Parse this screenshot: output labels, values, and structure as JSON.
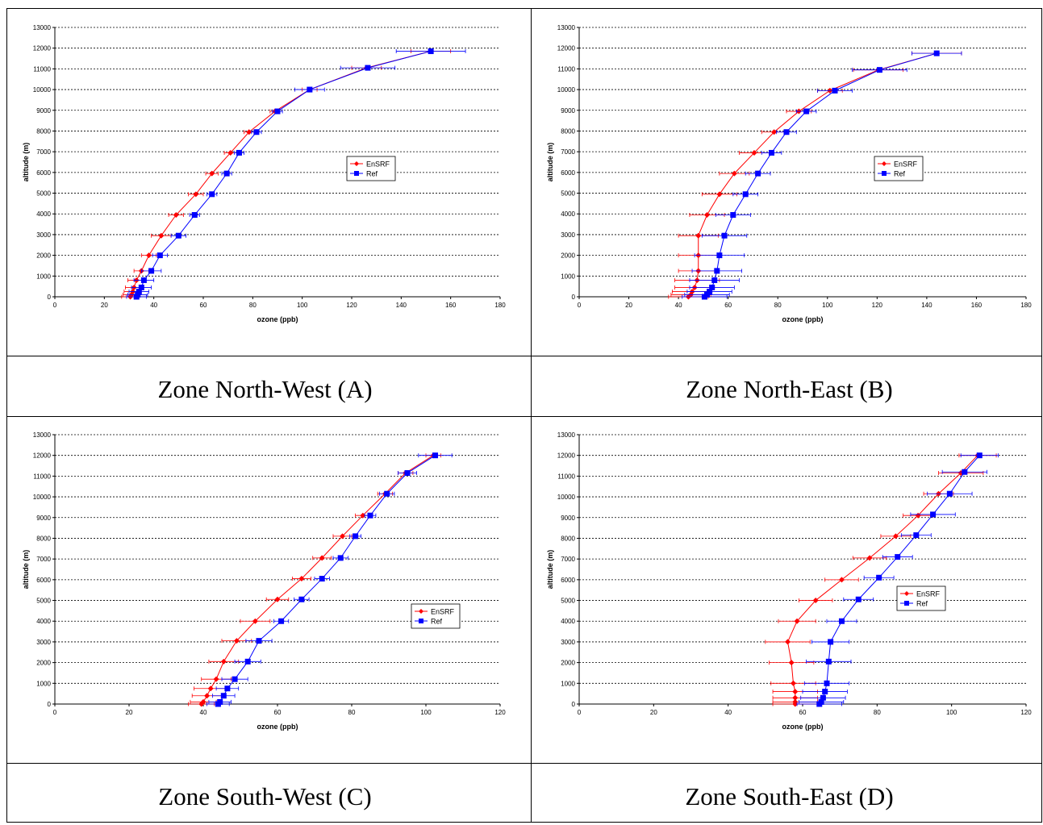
{
  "captions": [
    "Zone North-West (A)",
    "Zone North-East (B)",
    "Zone South-West (C)",
    "Zone South-East (D)"
  ],
  "chart_data": [
    {
      "type": "line",
      "xlabel": "ozone (ppb)",
      "ylabel": "altitude (m)",
      "xlim": [
        0,
        180
      ],
      "ylim": [
        0,
        13000
      ],
      "xticks": [
        0,
        20,
        40,
        60,
        80,
        100,
        120,
        140,
        160,
        180
      ],
      "yticks": [
        0,
        1000,
        2000,
        3000,
        4000,
        5000,
        6000,
        7000,
        8000,
        9000,
        10000,
        11000,
        12000,
        13000
      ],
      "grid": "horizontal dashed",
      "legend": "right",
      "colors": {
        "EnSRF": "#ff0000",
        "Ref": "#0000ff"
      },
      "series": [
        {
          "name": "EnSRF",
          "marker": "diamond",
          "points": [
            [
              30.5,
              0
            ],
            [
              31,
              100
            ],
            [
              31.5,
              250
            ],
            [
              32,
              450
            ],
            [
              33,
              800
            ],
            [
              35,
              1250
            ],
            [
              38,
              2000
            ],
            [
              43,
              2950
            ],
            [
              49,
              3950
            ],
            [
              57,
              4950
            ],
            [
              63.5,
              5950
            ],
            [
              71,
              6950
            ],
            [
              78.5,
              7950
            ],
            [
              89,
              8950
            ],
            [
              103,
              10000
            ],
            [
              126,
              11050
            ],
            [
              152,
              11850
            ]
          ],
          "errors": [
            3.5,
            3.5,
            3.5,
            3.5,
            3.5,
            3,
            3,
            4,
            3,
            3,
            2.5,
            2.5,
            2,
            2,
            3,
            6,
            8
          ]
        },
        {
          "name": "Ref",
          "marker": "square",
          "points": [
            [
              33,
              0
            ],
            [
              33.5,
              100
            ],
            [
              34,
              250
            ],
            [
              35,
              450
            ],
            [
              36,
              800
            ],
            [
              39,
              1250
            ],
            [
              42.5,
              2000
            ],
            [
              50,
              2950
            ],
            [
              56.5,
              3950
            ],
            [
              63.5,
              4950
            ],
            [
              69.5,
              5950
            ],
            [
              74.5,
              6950
            ],
            [
              81.5,
              7950
            ],
            [
              90,
              8950
            ],
            [
              103,
              10000
            ],
            [
              126.5,
              11050
            ],
            [
              152,
              11850
            ]
          ],
          "errors": [
            4,
            4,
            4,
            4,
            4,
            4,
            3,
            3,
            2,
            2,
            2,
            2,
            2,
            2,
            6,
            11,
            14
          ]
        }
      ]
    },
    {
      "type": "line",
      "xlabel": "ozone (ppb)",
      "ylabel": "altitude (m)",
      "xlim": [
        0,
        180
      ],
      "ylim": [
        0,
        13000
      ],
      "xticks": [
        0,
        20,
        40,
        60,
        80,
        100,
        120,
        140,
        160,
        180
      ],
      "yticks": [
        0,
        1000,
        2000,
        3000,
        4000,
        5000,
        6000,
        7000,
        8000,
        9000,
        10000,
        11000,
        12000,
        13000
      ],
      "grid": "horizontal dashed",
      "legend": "right",
      "colors": {
        "EnSRF": "#ff0000",
        "Ref": "#0000ff"
      },
      "series": [
        {
          "name": "EnSRF",
          "marker": "diamond",
          "points": [
            [
              44,
              0
            ],
            [
              45,
              100
            ],
            [
              45.5,
              250
            ],
            [
              46.5,
              450
            ],
            [
              47.5,
              800
            ],
            [
              48,
              1250
            ],
            [
              48,
              2000
            ],
            [
              48,
              2950
            ],
            [
              51.5,
              3950
            ],
            [
              56.5,
              4950
            ],
            [
              62.5,
              5950
            ],
            [
              70.5,
              6950
            ],
            [
              78.5,
              7950
            ],
            [
              88.5,
              8950
            ],
            [
              101,
              9950
            ],
            [
              120.5,
              10950
            ],
            [
              144,
              11750
            ]
          ],
          "errors": [
            8,
            8,
            8,
            8,
            9,
            8,
            8,
            8,
            7,
            7,
            6,
            6,
            5,
            5,
            5,
            10,
            10
          ]
        },
        {
          "name": "Ref",
          "marker": "square",
          "points": [
            [
              50.5,
              0
            ],
            [
              51.5,
              100
            ],
            [
              52.5,
              250
            ],
            [
              53.5,
              450
            ],
            [
              54.5,
              800
            ],
            [
              55.5,
              1250
            ],
            [
              56.5,
              2000
            ],
            [
              58.5,
              2950
            ],
            [
              62,
              3950
            ],
            [
              67,
              4950
            ],
            [
              72,
              5950
            ],
            [
              77.5,
              6950
            ],
            [
              83.5,
              7950
            ],
            [
              91.5,
              8950
            ],
            [
              103,
              9950
            ],
            [
              121,
              10950
            ],
            [
              144,
              11750
            ]
          ],
          "errors": [
            9,
            9,
            9,
            9,
            10,
            10,
            10,
            9,
            7,
            5,
            5,
            4,
            4,
            4,
            7,
            11,
            10
          ]
        }
      ]
    },
    {
      "type": "line",
      "xlabel": "ozone (ppb)",
      "ylabel": "altitude (m)",
      "xlim": [
        0,
        120
      ],
      "ylim": [
        0,
        13000
      ],
      "xticks": [
        0,
        20,
        40,
        60,
        80,
        100,
        120
      ],
      "yticks": [
        0,
        1000,
        2000,
        3000,
        4000,
        5000,
        6000,
        7000,
        8000,
        9000,
        10000,
        11000,
        12000,
        13000
      ],
      "grid": "horizontal dashed",
      "legend": "right",
      "colors": {
        "EnSRF": "#ff0000",
        "Ref": "#0000ff"
      },
      "series": [
        {
          "name": "EnSRF",
          "marker": "diamond",
          "points": [
            [
              39.5,
              0
            ],
            [
              40,
              100
            ],
            [
              41,
              400
            ],
            [
              42,
              750
            ],
            [
              43.5,
              1200
            ],
            [
              45.5,
              2050
            ],
            [
              49,
              3050
            ],
            [
              54,
              4000
            ],
            [
              60,
              5050
            ],
            [
              66.5,
              6050
            ],
            [
              72,
              7050
            ],
            [
              77.5,
              8100
            ],
            [
              83,
              9100
            ],
            [
              89,
              10150
            ],
            [
              94.5,
              11150
            ],
            [
              102,
              12000
            ]
          ],
          "errors": [
            3.5,
            3.5,
            4,
            4.5,
            4,
            4,
            4,
            4,
            3,
            2.5,
            2.5,
            2.5,
            2,
            2,
            2,
            2
          ]
        },
        {
          "name": "Ref",
          "marker": "square",
          "points": [
            [
              44,
              0
            ],
            [
              44.5,
              100
            ],
            [
              45.5,
              400
            ],
            [
              46.5,
              750
            ],
            [
              48.5,
              1200
            ],
            [
              52,
              2050
            ],
            [
              55,
              3050
            ],
            [
              61,
              4000
            ],
            [
              66.5,
              5050
            ],
            [
              72,
              6050
            ],
            [
              77,
              7050
            ],
            [
              81,
              8100
            ],
            [
              85,
              9100
            ],
            [
              89.5,
              10150
            ],
            [
              95,
              11150
            ],
            [
              102.5,
              12000
            ]
          ],
          "errors": [
            3,
            3,
            3,
            3,
            3.5,
            3.5,
            3.5,
            2,
            2,
            2,
            2,
            1.5,
            1.5,
            2,
            2.5,
            4.5
          ]
        }
      ]
    },
    {
      "type": "line",
      "xlabel": "ozone (ppb)",
      "ylabel": "altitude (m)",
      "xlim": [
        0,
        120
      ],
      "ylim": [
        0,
        13000
      ],
      "xticks": [
        0,
        20,
        40,
        60,
        80,
        100,
        120
      ],
      "yticks": [
        0,
        1000,
        2000,
        3000,
        4000,
        5000,
        6000,
        7000,
        8000,
        9000,
        10000,
        11000,
        12000,
        13000
      ],
      "grid": "horizontal dashed",
      "legend": "right",
      "colors": {
        "EnSRF": "#ff0000",
        "Ref": "#0000ff"
      },
      "series": [
        {
          "name": "EnSRF",
          "marker": "diamond",
          "points": [
            [
              58,
              0
            ],
            [
              58,
              100
            ],
            [
              58,
              300
            ],
            [
              58,
              600
            ],
            [
              57.5,
              1000
            ],
            [
              57,
              2000
            ],
            [
              56,
              3000
            ],
            [
              58.5,
              4000
            ],
            [
              63.5,
              5000
            ],
            [
              70.5,
              6000
            ],
            [
              78,
              7050
            ],
            [
              85,
              8100
            ],
            [
              91,
              9100
            ],
            [
              96.5,
              10150
            ],
            [
              102.5,
              11150
            ],
            [
              107,
              12000
            ]
          ],
          "errors": [
            6,
            6,
            6,
            6,
            6,
            6,
            6,
            5,
            4.5,
            4.5,
            4.5,
            4,
            4,
            4,
            6,
            5
          ]
        },
        {
          "name": "Ref",
          "marker": "square",
          "points": [
            [
              64.5,
              0
            ],
            [
              65,
              100
            ],
            [
              65.5,
              300
            ],
            [
              66,
              600
            ],
            [
              66.5,
              1000
            ],
            [
              67,
              2050
            ],
            [
              67.5,
              3000
            ],
            [
              70.5,
              4000
            ],
            [
              75,
              5050
            ],
            [
              80.5,
              6100
            ],
            [
              85.5,
              7100
            ],
            [
              90.5,
              8150
            ],
            [
              95,
              9150
            ],
            [
              99.5,
              10150
            ],
            [
              103.5,
              11200
            ],
            [
              107.5,
              12000
            ]
          ],
          "errors": [
            6,
            6,
            6,
            6,
            6,
            6,
            5,
            4,
            4,
            4,
            4,
            4,
            6,
            6,
            6,
            5
          ]
        }
      ]
    }
  ]
}
